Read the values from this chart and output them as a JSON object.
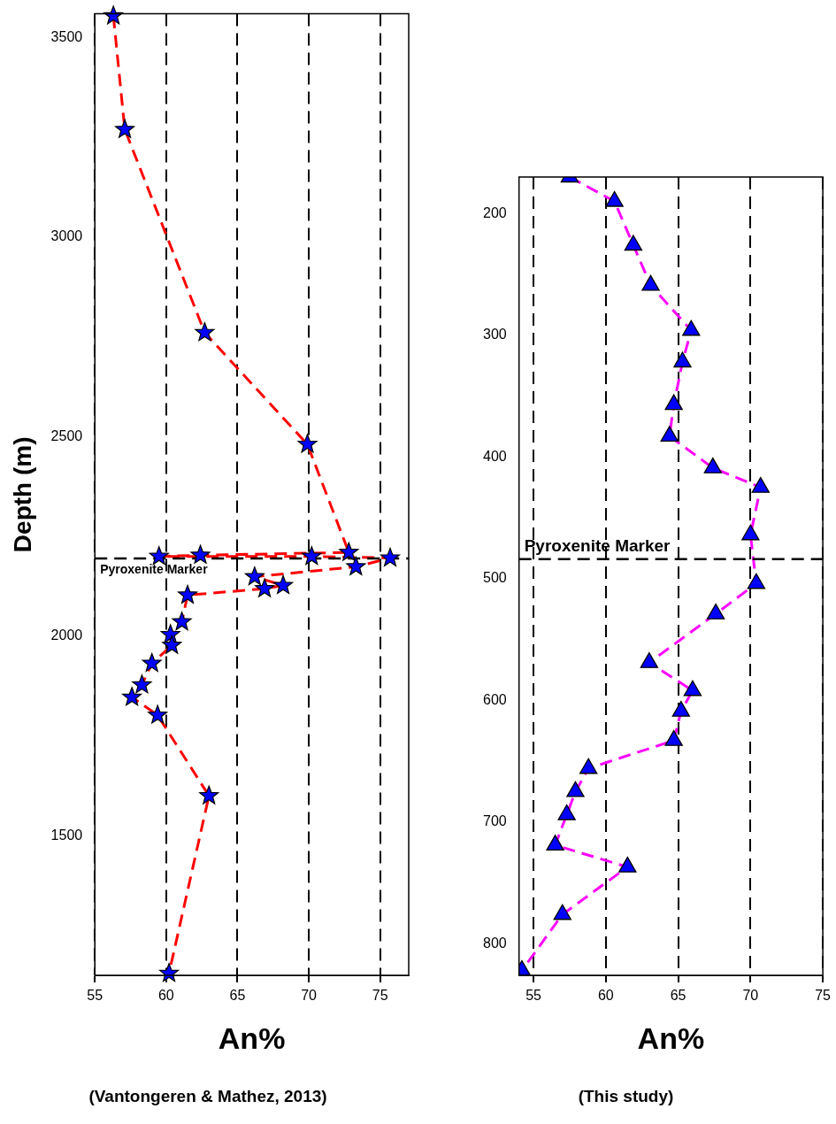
{
  "chart_data": [
    {
      "type": "line",
      "xlabel": "An%",
      "ylabel": "Depth (m)",
      "annotations": [
        "(Vantongeren & Mathez, 2013)"
      ],
      "xlim": [
        55,
        77
      ],
      "xticks": [
        55,
        60,
        65,
        70,
        75
      ],
      "ylim": [
        1150,
        3560
      ],
      "yticks": [
        1500,
        2000,
        2500,
        3000,
        3500
      ],
      "grid": "x",
      "marker": "star",
      "line_style": "dashed",
      "series": [
        {
          "color": "#ff0000",
          "x": [
            56.3,
            57.1,
            62.7,
            69.9,
            72.8,
            62.4,
            59.5,
            70.2,
            75.7,
            73.3,
            66.2,
            68.2,
            66.9,
            61.5,
            61.1,
            60.3,
            60.4,
            59.0,
            58.3,
            57.6,
            59.4,
            63.0,
            60.2
          ],
          "values": [
            3555,
            3270,
            2761,
            2481,
            2210,
            2203,
            2200,
            2200,
            2196,
            2174,
            2149,
            2127,
            2119,
            2103,
            2036,
            2004,
            1977,
            1932,
            1878,
            1847,
            1802,
            1600,
            1155
          ]
        }
      ],
      "ref_lines": [
        {
          "axis": "y",
          "value": 2195,
          "label": "Pyroxenite Marker",
          "color": "#000000",
          "line_style": "dashed"
        }
      ]
    },
    {
      "type": "line",
      "xlabel": "An%",
      "annotations": [
        "(This study)"
      ],
      "xlim": [
        54,
        75
      ],
      "xticks": [
        55,
        60,
        65,
        70,
        75
      ],
      "ylim": [
        826,
        170
      ],
      "yticks": [
        200,
        300,
        400,
        500,
        600,
        700,
        800
      ],
      "grid": "x",
      "marker": "triangle",
      "line_style": "dashed",
      "series": [
        {
          "color": "#ff00ff",
          "x": [
            57.5,
            60.6,
            61.9,
            63.1,
            65.9,
            65.3,
            64.7,
            64.4,
            67.4,
            70.7,
            70.0,
            70.4,
            67.6,
            63.0,
            66.0,
            65.2,
            64.7,
            58.8,
            57.9,
            57.3,
            56.5,
            61.5,
            57.0,
            54.2
          ],
          "values": [
            170,
            190,
            226,
            259,
            296,
            322,
            357,
            383,
            409,
            425,
            464,
            504,
            529,
            569,
            592,
            609,
            633,
            656,
            675,
            694,
            719,
            737,
            776,
            822
          ]
        }
      ],
      "ref_lines": [
        {
          "axis": "y",
          "value": 484,
          "label": "Pyroxenite Marker",
          "color": "#000000",
          "line_style": "dashed"
        }
      ]
    }
  ]
}
